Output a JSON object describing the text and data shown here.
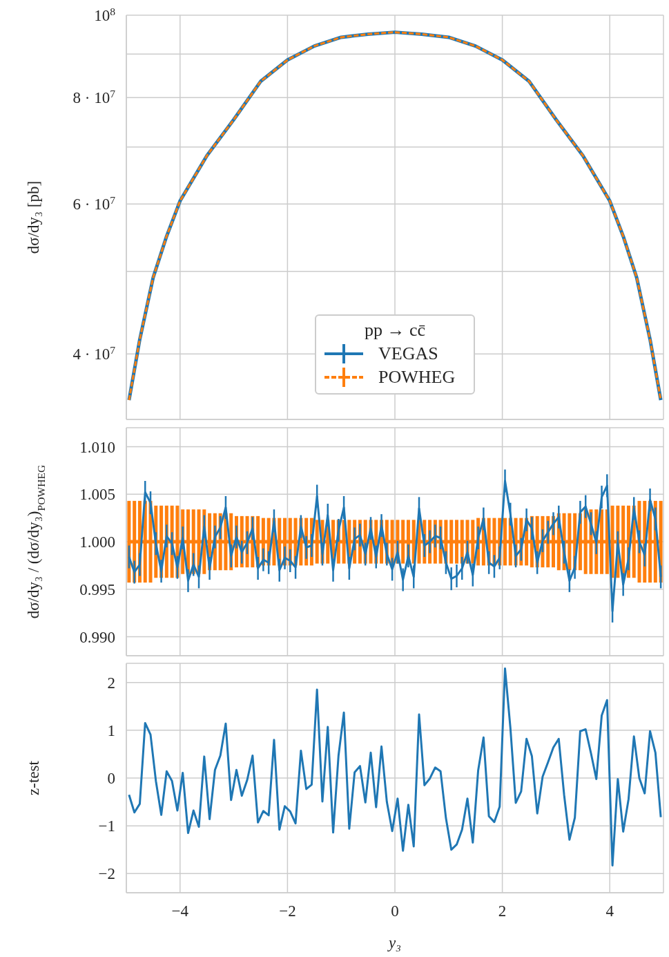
{
  "chart_data": [
    {
      "type": "line",
      "ylabel": "dσ/dy₃ [pb]",
      "legend_title": "pp → cc̄",
      "legend": "bottom",
      "grid": true,
      "log": "y",
      "tick_labels": "y",
      "xlim": [
        -5,
        5
      ],
      "xticks": [
        -4,
        -2,
        0,
        2,
        4
      ],
      "ylim": [
        33500000,
        100000000
      ],
      "yticks": [
        {
          "value": 100000000,
          "label": "10$^{8}$"
        },
        {
          "value": 90000000,
          "label": null
        },
        {
          "value": 80000000,
          "label": "8 · 10$^{7}$"
        },
        {
          "value": 70000000,
          "label": null
        },
        {
          "value": 60000000,
          "label": "6 · 10$^{7}$"
        },
        {
          "value": 50000000,
          "label": null
        },
        {
          "value": 40000000,
          "label": "4 · 10$^{7}$"
        }
      ],
      "x": [
        -4.95,
        -4.75,
        -4.5,
        -4.25,
        -4,
        -3.5,
        -3,
        -2.5,
        -2,
        -1.5,
        -1,
        -0.5,
        0,
        0.5,
        1,
        1.5,
        2,
        2.5,
        3,
        3.5,
        4,
        4.25,
        4.5,
        4.75,
        4.95
      ],
      "series": [
        {
          "name": "VEGAS",
          "color": "#1f77b4",
          "values": [
            35300000,
            41600000,
            49200000,
            55000000,
            60500000,
            68400000,
            75400000,
            83600000,
            88600000,
            92000000,
            94200000,
            95000000,
            95500000,
            95000000,
            94200000,
            92000000,
            88600000,
            83600000,
            75400000,
            68400000,
            60500000,
            55000000,
            49200000,
            41600000,
            35300000
          ]
        },
        {
          "name": "POWHEG",
          "color": "#ff7f0e",
          "line_style": "dashed",
          "values": [
            35300000,
            41600000,
            49200000,
            55000000,
            60500000,
            68400000,
            75400000,
            83600000,
            88600000,
            92000000,
            94200000,
            95000000,
            95500000,
            95000000,
            94200000,
            92000000,
            88600000,
            83600000,
            75400000,
            68400000,
            60500000,
            55000000,
            49200000,
            41600000,
            35300000
          ]
        }
      ]
    },
    {
      "type": "line",
      "ylabel": "dσ/dy₃ / (dσ/dy₃)$_{POWHEG}$",
      "grid": true,
      "tick_labels": "y",
      "xlim": [
        -5,
        5
      ],
      "xticks": [
        -4,
        -2,
        0,
        2,
        4
      ],
      "ylim": [
        0.988,
        1.012
      ],
      "yticks": [
        {
          "value": 0.99,
          "label": "0.990"
        },
        {
          "value": 0.995,
          "label": "0.995"
        },
        {
          "value": 1,
          "label": "1.000"
        },
        {
          "value": 1.005,
          "label": "1.005"
        },
        {
          "value": 1.01,
          "label": "1.010"
        }
      ],
      "x": [
        -4.95,
        -4.85,
        -4.75,
        -4.65,
        -4.55,
        -4.45,
        -4.35,
        -4.25,
        -4.15,
        -4.05,
        -3.95,
        -3.85,
        -3.75,
        -3.65,
        -3.55,
        -3.45,
        -3.35,
        -3.25,
        -3.15,
        -3.05,
        -2.95,
        -2.85,
        -2.75,
        -2.65,
        -2.55,
        -2.45,
        -2.35,
        -2.25,
        -2.15,
        -2.05,
        -1.95,
        -1.85,
        -1.75,
        -1.65,
        -1.55,
        -1.45,
        -1.35,
        -1.25,
        -1.15,
        -1.05,
        -0.95,
        -0.85,
        -0.75,
        -0.65,
        -0.55,
        -0.45,
        -0.35,
        -0.25,
        -0.15,
        -0.05,
        0.05,
        0.15,
        0.25,
        0.35,
        0.45,
        0.55,
        0.65,
        0.75,
        0.85,
        0.95,
        1.05,
        1.15,
        1.25,
        1.35,
        1.45,
        1.55,
        1.65,
        1.75,
        1.85,
        1.95,
        2.05,
        2.15,
        2.25,
        2.35,
        2.45,
        2.55,
        2.65,
        2.75,
        2.85,
        2.95,
        3.05,
        3.15,
        3.25,
        3.35,
        3.45,
        3.55,
        3.65,
        3.75,
        3.85,
        3.95,
        4.05,
        4.15,
        4.25,
        4.35,
        4.45,
        4.55,
        4.65,
        4.75,
        4.85,
        4.95
      ],
      "series": [
        {
          "color": "#ff7f0e",
          "values": [
            1,
            1,
            1,
            1,
            1,
            1,
            1,
            1,
            1,
            1,
            1,
            1,
            1,
            1,
            1,
            1,
            1,
            1,
            1,
            1,
            1,
            1,
            1,
            1,
            1,
            1,
            1,
            1,
            1,
            1,
            1,
            1,
            1,
            1,
            1,
            1,
            1,
            1,
            1,
            1,
            1,
            1,
            1,
            1,
            1,
            1,
            1,
            1,
            1,
            1,
            1,
            1,
            1,
            1,
            1,
            1,
            1,
            1,
            1,
            1,
            1,
            1,
            1,
            1,
            1,
            1,
            1,
            1,
            1,
            1,
            1,
            1,
            1,
            1,
            1,
            1,
            1,
            1,
            1,
            1,
            1,
            1,
            1,
            1,
            1,
            1,
            1,
            1,
            1,
            1,
            1,
            1,
            1,
            1,
            1,
            1,
            1,
            1,
            1,
            1
          ],
          "errors": [
            0.0043,
            0.0043,
            0.0043,
            0.0043,
            0.0043,
            0.0038,
            0.0038,
            0.0038,
            0.0038,
            0.0038,
            0.0034,
            0.0034,
            0.0034,
            0.0034,
            0.0034,
            0.003,
            0.003,
            0.003,
            0.003,
            0.003,
            0.0027,
            0.0027,
            0.0027,
            0.0027,
            0.0027,
            0.0025,
            0.0025,
            0.0025,
            0.0025,
            0.0025,
            0.0025,
            0.0025,
            0.0025,
            0.0025,
            0.0025,
            0.0023,
            0.0023,
            0.0023,
            0.0023,
            0.0023,
            0.0023,
            0.0023,
            0.0023,
            0.0023,
            0.0023,
            0.0023,
            0.0023,
            0.0023,
            0.0023,
            0.0023,
            0.0023,
            0.0023,
            0.0023,
            0.0023,
            0.0023,
            0.0023,
            0.0023,
            0.0023,
            0.0023,
            0.0023,
            0.0023,
            0.0023,
            0.0023,
            0.0023,
            0.0023,
            0.0025,
            0.0025,
            0.0025,
            0.0025,
            0.0025,
            0.0025,
            0.0025,
            0.0025,
            0.0025,
            0.0025,
            0.0027,
            0.0027,
            0.0027,
            0.0027,
            0.0027,
            0.003,
            0.003,
            0.003,
            0.003,
            0.003,
            0.0034,
            0.0034,
            0.0034,
            0.0034,
            0.0034,
            0.0038,
            0.0038,
            0.0038,
            0.0038,
            0.0038,
            0.0043,
            0.0043,
            0.0043,
            0.0043,
            0.0043
          ]
        },
        {
          "color": "#1f77b4",
          "values": [
            0.9984,
            0.9968,
            0.9976,
            1.0052,
            1.0041,
            0.9998,
            0.9969,
            1.0006,
            0.9998,
            0.9973,
            1.0004,
            0.9959,
            0.9976,
            0.9963,
            1.0016,
            0.9972,
            1.0005,
            1.0015,
            1.0036,
            0.9985,
            1.0005,
            0.9989,
            0.9999,
            1.0014,
            0.9972,
            0.9981,
            0.9978,
            1.0022,
            0.997,
            0.9983,
            0.998,
            0.9973,
            1.0016,
            0.9994,
            0.9996,
            1.0048,
            0.9987,
            1.0028,
            0.997,
            1.0012,
            1.0036,
            0.9972,
            1.0003,
            1.0007,
            0.9987,
            1.0014,
            0.9984,
            1.0017,
            0.9987,
            0.9971,
            0.9989,
            0.996,
            0.9985,
            0.9963,
            1.0035,
            0.9996,
            1,
            1.0006,
            1.0004,
            0.9978,
            0.9961,
            0.9964,
            0.9972,
            0.9989,
            0.9965,
            1.0004,
            1.0024,
            0.9978,
            0.9974,
            0.9983,
            1.0064,
            1.0029,
            0.9985,
            0.9992,
            1.0023,
            1.0014,
            0.9978,
            1.0001,
            1.001,
            1.0019,
            1.0026,
            0.9989,
            0.9959,
            0.9973,
            1.0031,
            1.0037,
            1.0019,
            0.9999,
            1.0047,
            1.0059,
            0.9927,
            0.9999,
            0.9955,
            0.9982,
            1.0035,
            1,
            0.9986,
            1.0044,
            1.0024,
            0.9963
          ],
          "errors": [
            0.0012,
            0.0012,
            0.0012,
            0.0012,
            0.0012,
            0.0012,
            0.0012,
            0.0012,
            0.0012,
            0.0012,
            0.0012,
            0.0012,
            0.0012,
            0.0012,
            0.0012,
            0.0012,
            0.0012,
            0.0012,
            0.0012,
            0.0012,
            0.0012,
            0.0012,
            0.0012,
            0.0012,
            0.0012,
            0.0012,
            0.0012,
            0.0012,
            0.0012,
            0.0012,
            0.0012,
            0.0012,
            0.0012,
            0.0012,
            0.0012,
            0.0012,
            0.0012,
            0.0012,
            0.0012,
            0.0012,
            0.0012,
            0.0012,
            0.0012,
            0.0012,
            0.0012,
            0.0012,
            0.0012,
            0.0012,
            0.0012,
            0.0012,
            0.0012,
            0.0012,
            0.0012,
            0.0012,
            0.0012,
            0.0012,
            0.0012,
            0.0012,
            0.0012,
            0.0012,
            0.0012,
            0.0012,
            0.0012,
            0.0012,
            0.0012,
            0.0012,
            0.0012,
            0.0012,
            0.0012,
            0.0012,
            0.0012,
            0.0012,
            0.0012,
            0.0012,
            0.0012,
            0.0012,
            0.0012,
            0.0012,
            0.0012,
            0.0012,
            0.0012,
            0.0012,
            0.0012,
            0.0012,
            0.0012,
            0.0012,
            0.0012,
            0.0012,
            0.0012,
            0.0012,
            0.0012,
            0.0012,
            0.0012,
            0.0012,
            0.0012,
            0.0012,
            0.0012,
            0.0012,
            0.0012,
            0.0012
          ]
        }
      ]
    },
    {
      "type": "line",
      "ylabel": "z-test",
      "xlabel": "y₃",
      "grid": true,
      "xlim": [
        -5,
        5
      ],
      "xticks": [
        {
          "value": -4,
          "label": "−4"
        },
        {
          "value": -2,
          "label": "−2"
        },
        0,
        2,
        4
      ],
      "ylim": [
        -2.4,
        2.4
      ],
      "yticks": [
        {
          "value": -2,
          "label": "−2"
        },
        {
          "value": -1,
          "label": "−1"
        },
        0,
        1,
        2
      ],
      "x": [
        -4.95,
        -4.85,
        -4.75,
        -4.65,
        -4.55,
        -4.45,
        -4.35,
        -4.25,
        -4.15,
        -4.05,
        -3.95,
        -3.85,
        -3.75,
        -3.65,
        -3.55,
        -3.45,
        -3.35,
        -3.25,
        -3.15,
        -3.05,
        -2.95,
        -2.85,
        -2.75,
        -2.65,
        -2.55,
        -2.45,
        -2.35,
        -2.25,
        -2.15,
        -2.05,
        -1.95,
        -1.85,
        -1.75,
        -1.65,
        -1.55,
        -1.45,
        -1.35,
        -1.25,
        -1.15,
        -1.05,
        -0.95,
        -0.85,
        -0.75,
        -0.65,
        -0.55,
        -0.45,
        -0.35,
        -0.25,
        -0.15,
        -0.05,
        0.05,
        0.15,
        0.25,
        0.35,
        0.45,
        0.55,
        0.65,
        0.75,
        0.85,
        0.95,
        1.05,
        1.15,
        1.25,
        1.35,
        1.45,
        1.55,
        1.65,
        1.75,
        1.85,
        1.95,
        2.05,
        2.15,
        2.25,
        2.35,
        2.45,
        2.55,
        2.65,
        2.75,
        2.85,
        2.95,
        3.05,
        3.15,
        3.25,
        3.35,
        3.45,
        3.55,
        3.65,
        3.75,
        3.85,
        3.95,
        4.05,
        4.15,
        4.25,
        4.35,
        4.45,
        4.55,
        4.65,
        4.75,
        4.85,
        4.95
      ],
      "series": [
        {
          "color": "#1f77b4",
          "values": [
            -0.35,
            -0.72,
            -0.54,
            1.15,
            0.91,
            -0.06,
            -0.77,
            0.14,
            -0.06,
            -0.68,
            0.11,
            -1.15,
            -0.68,
            -1.02,
            0.45,
            -0.86,
            0.17,
            0.47,
            1.14,
            -0.46,
            0.17,
            -0.37,
            -0.04,
            0.47,
            -0.93,
            -0.69,
            -0.78,
            0.8,
            -1.08,
            -0.59,
            -0.7,
            -0.95,
            0.57,
            -0.23,
            -0.14,
            1.85,
            -0.49,
            1.07,
            -1.14,
            0.47,
            1.37,
            -1.06,
            0.12,
            0.25,
            -0.51,
            0.53,
            -0.61,
            0.66,
            -0.5,
            -1.11,
            -0.43,
            -1.52,
            -0.56,
            -1.43,
            1.33,
            -0.15,
            -0.01,
            0.22,
            0.14,
            -0.84,
            -1.5,
            -1.39,
            -1.08,
            -0.43,
            -1.35,
            0.16,
            0.85,
            -0.8,
            -0.92,
            -0.6,
            2.29,
            1.05,
            -0.52,
            -0.28,
            0.82,
            0.46,
            -0.74,
            0.03,
            0.33,
            0.64,
            0.82,
            -0.35,
            -1.29,
            -0.83,
            0.98,
            1.02,
            0.52,
            -0.02,
            1.31,
            1.63,
            -1.83,
            -0.02,
            -1.12,
            -0.44,
            0.87,
            0,
            -0.32,
            0.98,
            0.53,
            -0.82
          ]
        }
      ]
    }
  ]
}
